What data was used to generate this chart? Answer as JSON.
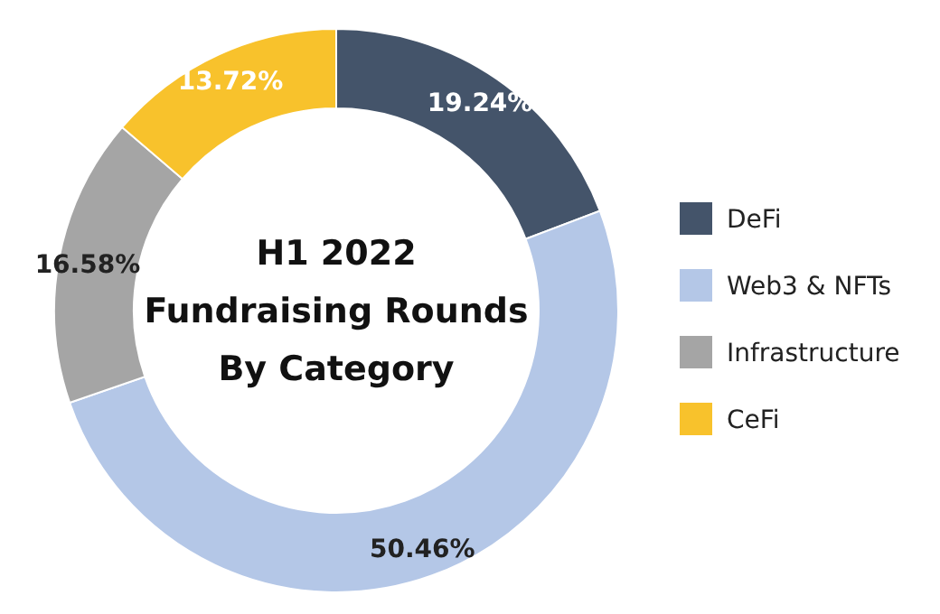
{
  "chart_data": {
    "type": "donut",
    "title": "H1 2022 Fundraising Rounds By Category",
    "categories": [
      "DeFi",
      "Web3 & NFTs",
      "Infrastructure",
      "CeFi"
    ],
    "values": [
      19.24,
      50.46,
      16.58,
      13.72
    ],
    "value_labels": [
      "19.24%",
      "50.46%",
      "16.58%",
      "13.72%"
    ],
    "colors": [
      "#44546a",
      "#b4c7e7",
      "#a5a5a5",
      "#f8c22c"
    ],
    "legend": "right"
  }
}
